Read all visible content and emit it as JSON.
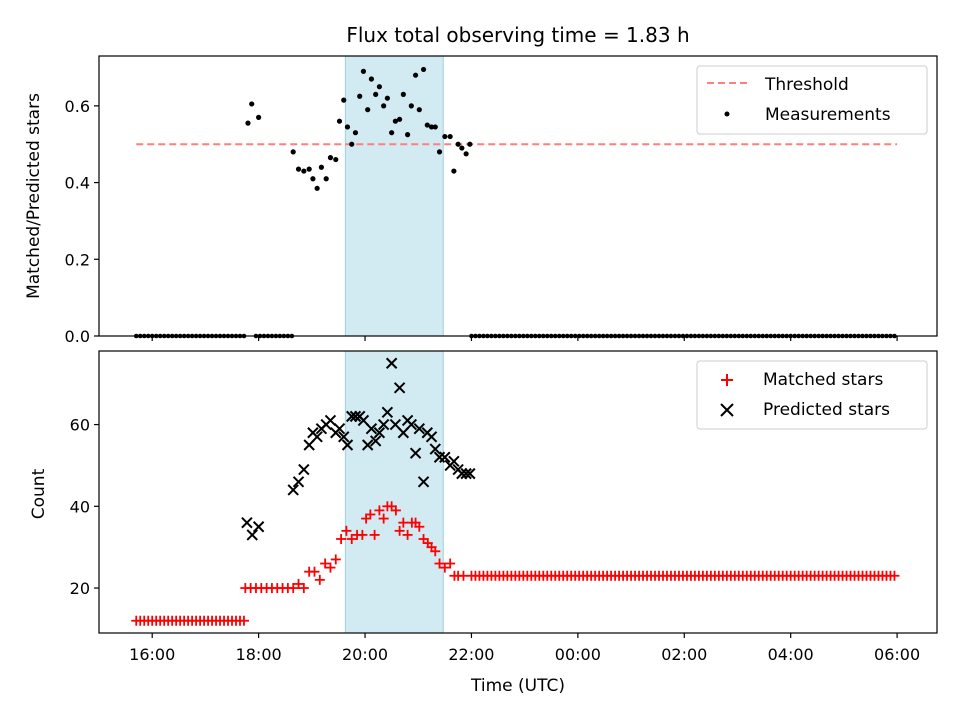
{
  "chart_data": [
    {
      "type": "scatter",
      "title": "Flux total observing time = 1.83 h",
      "xlabel": "",
      "ylabel": "Matched/Predicted stars",
      "ylim": [
        0,
        0.73
      ],
      "yticks": [
        0.0,
        0.2,
        0.4,
        0.6
      ],
      "ytick_labels": [
        "0.0",
        "0.2",
        "0.4",
        "0.6"
      ],
      "x_time_range_hours": [
        15.0,
        30.75
      ],
      "shaded_region_hours": [
        19.63,
        21.47
      ],
      "shade_color": "#add8e6",
      "legend": {
        "placement": "upper right",
        "entries": [
          "Threshold",
          "Measurements"
        ]
      },
      "threshold": {
        "name": "Threshold",
        "value": 0.5,
        "x_range_hours": [
          15.7,
          30.0
        ],
        "color": "#ff7f7f",
        "style": "dashed"
      },
      "measurements": {
        "name": "Measurements",
        "color": "#000000",
        "zero_segments_hours": [
          [
            15.7,
            17.75
          ],
          [
            17.95,
            18.65
          ],
          [
            22.0,
            30.0
          ]
        ],
        "x_hours": [
          17.8,
          17.87,
          18.0,
          18.65,
          18.75,
          18.85,
          18.95,
          19.02,
          19.1,
          19.18,
          19.27,
          19.35,
          19.45,
          19.52,
          19.6,
          19.67,
          19.75,
          19.82,
          19.9,
          19.97,
          20.05,
          20.12,
          20.2,
          20.27,
          20.35,
          20.42,
          20.5,
          20.57,
          20.65,
          20.72,
          20.8,
          20.87,
          20.95,
          21.02,
          21.1,
          21.17,
          21.25,
          21.32,
          21.4,
          21.5,
          21.6,
          21.67,
          21.75,
          21.82,
          21.9,
          21.97
        ],
        "y": [
          0.555,
          0.605,
          0.57,
          0.48,
          0.435,
          0.43,
          0.435,
          0.41,
          0.385,
          0.44,
          0.41,
          0.465,
          0.46,
          0.56,
          0.615,
          0.545,
          0.5,
          0.53,
          0.625,
          0.69,
          0.59,
          0.67,
          0.63,
          0.65,
          0.6,
          0.62,
          0.53,
          0.56,
          0.565,
          0.63,
          0.525,
          0.6,
          0.68,
          0.59,
          0.695,
          0.55,
          0.545,
          0.545,
          0.48,
          0.52,
          0.52,
          0.43,
          0.5,
          0.49,
          0.475,
          0.5
        ]
      }
    },
    {
      "type": "scatter",
      "title": "",
      "xlabel": "Time (UTC)",
      "ylabel": "Count",
      "ylim": [
        9,
        78
      ],
      "yticks": [
        20,
        40,
        60
      ],
      "ytick_labels": [
        "20",
        "40",
        "60"
      ],
      "x_time_range_hours": [
        15.0,
        30.75
      ],
      "xticks_hours": [
        16,
        18,
        20,
        22,
        24,
        26,
        28,
        30
      ],
      "xtick_labels": [
        "16:00",
        "18:00",
        "20:00",
        "22:00",
        "00:00",
        "02:00",
        "04:00",
        "06:00"
      ],
      "shaded_region_hours": [
        19.63,
        21.47
      ],
      "shade_color": "#add8e6",
      "legend": {
        "placement": "upper right",
        "entries": [
          "Matched stars",
          "Predicted stars"
        ]
      },
      "matched": {
        "name": "Matched stars",
        "color": "#ff0000",
        "segments": [
          {
            "x_range_hours": [
              15.7,
              17.75
            ],
            "value": 12
          },
          {
            "x_range_hours": [
              22.0,
              30.0
            ],
            "value": 23
          }
        ],
        "x_hours": [
          17.75,
          17.85,
          17.95,
          18.05,
          18.15,
          18.25,
          18.35,
          18.45,
          18.55,
          18.65,
          18.75,
          18.85,
          18.95,
          19.05,
          19.15,
          19.25,
          19.35,
          19.45,
          19.55,
          19.65,
          19.75,
          19.85,
          19.95,
          20.02,
          20.1,
          20.18,
          20.27,
          20.35,
          20.42,
          20.5,
          20.58,
          20.65,
          20.72,
          20.8,
          20.88,
          20.95,
          21.02,
          21.1,
          21.18,
          21.25,
          21.32,
          21.4,
          21.5,
          21.6,
          21.68,
          21.75,
          21.85
        ],
        "y": [
          20,
          20,
          20,
          20,
          20,
          20,
          20,
          20,
          20,
          20,
          21,
          20,
          24,
          24,
          22,
          26,
          25,
          27,
          32,
          34,
          32,
          33,
          33,
          37,
          38,
          33,
          39,
          37,
          40,
          40,
          39,
          34,
          36,
          33,
          36,
          36,
          35,
          32,
          31,
          30,
          29,
          26,
          25,
          26,
          23,
          23,
          23
        ]
      },
      "predicted": {
        "name": "Predicted stars",
        "color": "#000000",
        "x_hours": [
          17.78,
          17.88,
          18.0,
          18.65,
          18.75,
          18.85,
          18.95,
          19.02,
          19.1,
          19.18,
          19.27,
          19.35,
          19.45,
          19.52,
          19.6,
          19.67,
          19.75,
          19.82,
          19.9,
          19.97,
          20.05,
          20.12,
          20.2,
          20.27,
          20.35,
          20.42,
          20.5,
          20.57,
          20.65,
          20.72,
          20.8,
          20.87,
          20.95,
          21.02,
          21.1,
          21.17,
          21.25,
          21.32,
          21.4,
          21.5,
          21.6,
          21.67,
          21.75,
          21.82,
          21.9,
          21.97
        ],
        "y": [
          36,
          33,
          35,
          44,
          46,
          49,
          55,
          58,
          57,
          59,
          60,
          61,
          58,
          59,
          57,
          55,
          62,
          62,
          62,
          61,
          55,
          59,
          56,
          58,
          60,
          63,
          75,
          60,
          69,
          58,
          61,
          60,
          53,
          59,
          46,
          58,
          57,
          54,
          52,
          52,
          50,
          51,
          49,
          48,
          48,
          48
        ]
      }
    }
  ]
}
